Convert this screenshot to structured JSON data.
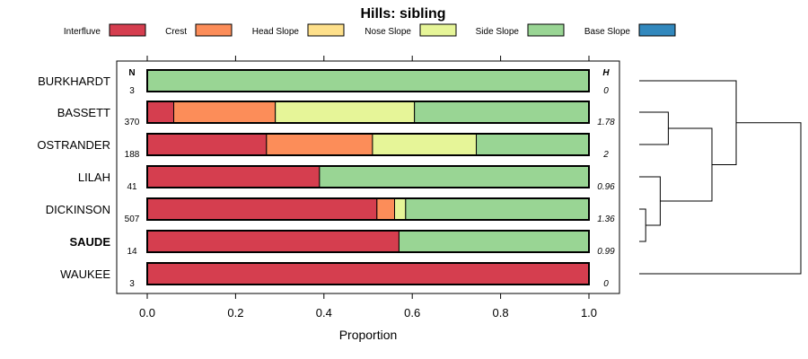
{
  "chart_data": {
    "type": "bar",
    "stacked": true,
    "orientation": "horizontal",
    "title": "Hills: sibling",
    "xlabel": "Proportion",
    "xlim": [
      0,
      1
    ],
    "xticks": [
      0.0,
      0.2,
      0.4,
      0.6,
      0.8,
      1.0
    ],
    "xtick_labels": [
      "0.0",
      "0.2",
      "0.4",
      "0.6",
      "0.8",
      "1.0"
    ],
    "n_header": "N",
    "h_header": "H",
    "legend": [
      {
        "name": "Interfluve",
        "color": "#D53E4F"
      },
      {
        "name": "Crest",
        "color": "#FC8D59"
      },
      {
        "name": "Head Slope",
        "color": "#FEE08B"
      },
      {
        "name": "Nose Slope",
        "color": "#E6F598"
      },
      {
        "name": "Side Slope",
        "color": "#99D594"
      },
      {
        "name": "Base Slope",
        "color": "#3288BD"
      }
    ],
    "rows": [
      {
        "name": "BURKHARDT",
        "bold": false,
        "n": "3",
        "h": "0",
        "values": [
          0,
          0,
          0,
          0,
          1.0,
          0
        ]
      },
      {
        "name": "BASSETT",
        "bold": false,
        "n": "370",
        "h": "1.78",
        "values": [
          0.06,
          0.23,
          0,
          0.315,
          0.395,
          0
        ]
      },
      {
        "name": "OSTRANDER",
        "bold": false,
        "n": "188",
        "h": "2",
        "values": [
          0.27,
          0.24,
          0,
          0.235,
          0.255,
          0
        ]
      },
      {
        "name": "LILAH",
        "bold": false,
        "n": "41",
        "h": "0.96",
        "values": [
          0.39,
          0,
          0,
          0,
          0.61,
          0
        ]
      },
      {
        "name": "DICKINSON",
        "bold": false,
        "n": "507",
        "h": "1.36",
        "values": [
          0.52,
          0.04,
          0,
          0.025,
          0.415,
          0
        ]
      },
      {
        "name": "SAUDE",
        "bold": true,
        "n": "14",
        "h": "0.99",
        "values": [
          0.57,
          0,
          0,
          0,
          0.43,
          0
        ]
      },
      {
        "name": "WAUKEE",
        "bold": false,
        "n": "3",
        "h": "0",
        "values": [
          1.0,
          0,
          0,
          0,
          0,
          0
        ]
      }
    ],
    "dendrogram": {
      "leaf_order": [
        "BURKHARDT",
        "BASSETT",
        "OSTRANDER",
        "LILAH",
        "DICKINSON",
        "SAUDE",
        "WAUKEE"
      ],
      "merges": [
        {
          "left": "DICKINSON",
          "right": "SAUDE",
          "height": 0.04
        },
        {
          "left": "LILAH",
          "right": "m0",
          "height": 0.13
        },
        {
          "left": "BASSETT",
          "right": "OSTRANDER",
          "height": 0.18
        },
        {
          "left": "m2",
          "right": "m1",
          "height": 0.45
        },
        {
          "left": "BURKHARDT",
          "right": "m3",
          "height": 0.6
        },
        {
          "left": "m4",
          "right": "WAUKEE",
          "height": 1.0
        }
      ]
    }
  }
}
